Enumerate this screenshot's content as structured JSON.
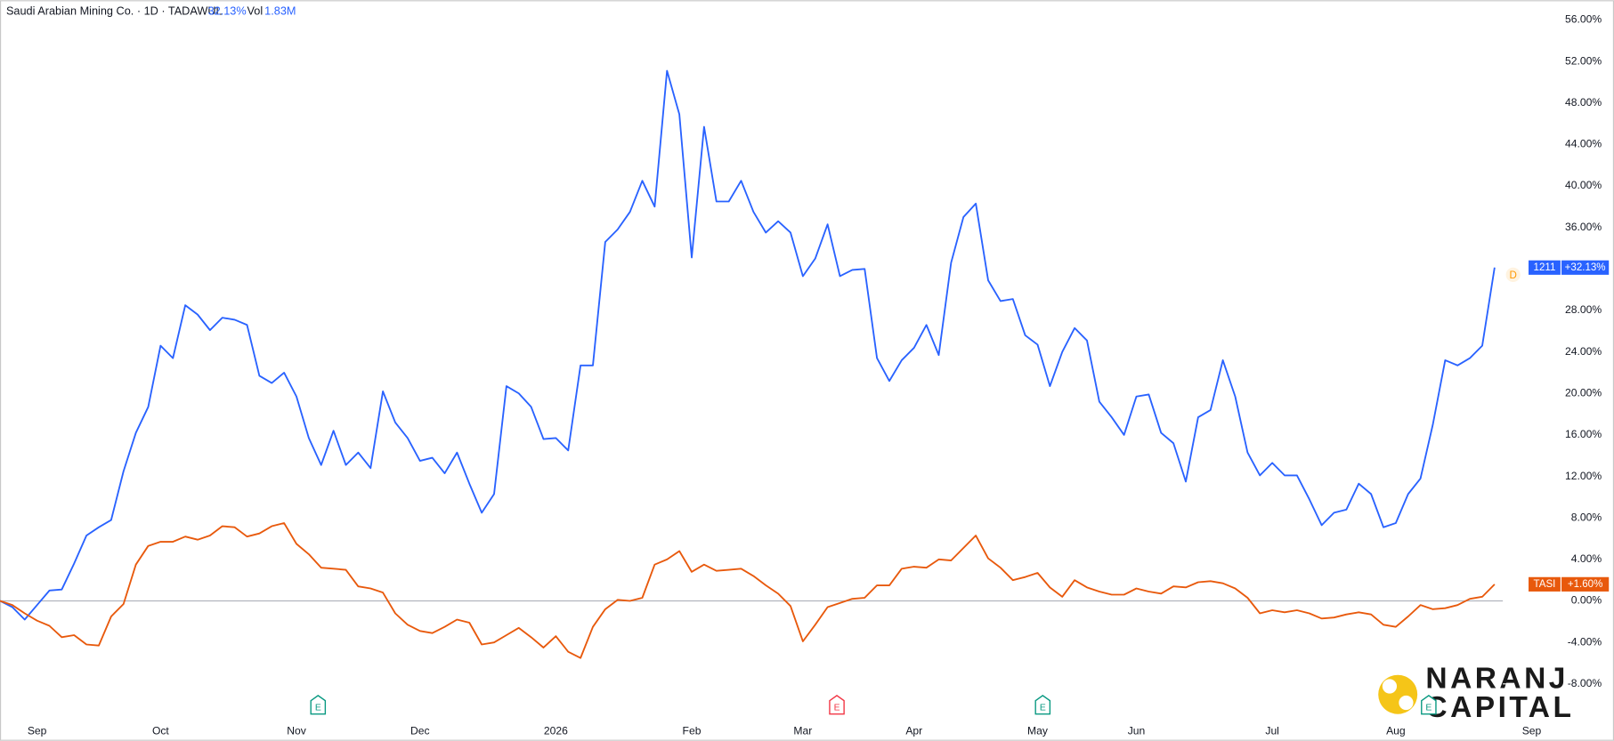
{
  "chart_data": {
    "type": "line",
    "header": {
      "title": "Saudi Arabian Mining Co. · 1D · TADAWUL",
      "change": "32.13%",
      "volume_label": "Vol",
      "volume": "1.83M"
    },
    "categories": [
      null,
      null,
      null,
      "Sep",
      null,
      null,
      null,
      null,
      null,
      null,
      null,
      null,
      null,
      "Oct",
      null,
      null,
      null,
      null,
      null,
      null,
      null,
      null,
      null,
      null,
      "Nov",
      null,
      null,
      null,
      null,
      null,
      null,
      null,
      null,
      null,
      "Dec",
      null,
      null,
      null,
      null,
      null,
      null,
      null,
      null,
      null,
      null,
      "2026",
      null,
      null,
      null,
      null,
      null,
      null,
      null,
      null,
      null,
      null,
      "Feb",
      null,
      null,
      null,
      null,
      null,
      null,
      null,
      null,
      "Mar",
      null,
      null,
      null,
      null,
      null,
      null,
      null,
      null,
      "Apr",
      null,
      null,
      null,
      null,
      null,
      null,
      null,
      null,
      null,
      "May",
      null,
      null,
      null,
      null,
      null,
      null,
      null,
      "Jun",
      null,
      null,
      null,
      null,
      null,
      null,
      null,
      null,
      null,
      null,
      "Jul",
      null,
      null,
      null,
      null,
      null,
      null,
      null,
      null,
      null,
      "Aug",
      null,
      null,
      null,
      null,
      null,
      null,
      null,
      null,
      null,
      null,
      "Sep"
    ],
    "series": [
      {
        "name": "1211",
        "color": "#2962ff",
        "last_value_label": "+32.13%",
        "values": [
          0,
          -0.6,
          -1.8,
          -0.4,
          1,
          1.1,
          3.6,
          6.3,
          7.1,
          7.8,
          12.5,
          16.2,
          18.7,
          24.6,
          23.4,
          28.5,
          27.6,
          26.1,
          27.3,
          27.1,
          26.6,
          21.7,
          21,
          22,
          19.7,
          15.7,
          13.1,
          16.4,
          13.1,
          14.3,
          12.8,
          20.2,
          17.2,
          15.7,
          13.5,
          13.8,
          12.3,
          14.3,
          11.3,
          8.5,
          10.3,
          20.7,
          20,
          18.7,
          15.6,
          15.7,
          14.5,
          22.7,
          22.7,
          34.6,
          35.8,
          37.5,
          40.5,
          38,
          51.1,
          46.9,
          33.1,
          45.7,
          38.5,
          38.5,
          40.5,
          37.5,
          35.5,
          36.6,
          35.5,
          31.3,
          33,
          36.3,
          31.3,
          31.9,
          32,
          23.4,
          21.2,
          23.2,
          24.4,
          26.6,
          23.7,
          32.6,
          37,
          38.3,
          30.9,
          28.9,
          29.1,
          25.6,
          24.7,
          20.7,
          24,
          26.3,
          25.1,
          19.2,
          17.7,
          16,
          19.7,
          19.9,
          16.2,
          15.2,
          11.5,
          17.7,
          18.4,
          23.2,
          19.7,
          14.3,
          12.1,
          13.3,
          12.1,
          12.1,
          9.8,
          7.3,
          8.5,
          8.8,
          11.3,
          10.3,
          7.1,
          7.5,
          10.3,
          11.8,
          17,
          23.2,
          22.7,
          23.4,
          24.6,
          32.13,
          null,
          null,
          null
        ]
      },
      {
        "name": "TASI",
        "color": "#e8590c",
        "last_value_label": "+1.60%",
        "values": [
          0,
          -0.4,
          -1.2,
          -1.9,
          -2.4,
          -3.5,
          -3.3,
          -4.2,
          -4.3,
          -1.5,
          -0.3,
          3.5,
          5.3,
          5.7,
          5.7,
          6.2,
          5.9,
          6.3,
          7.2,
          7.1,
          6.2,
          6.5,
          7.2,
          7.5,
          5.5,
          4.5,
          3.2,
          3.1,
          3,
          1.4,
          1.2,
          0.8,
          -1.2,
          -2.3,
          -2.9,
          -3.1,
          -2.5,
          -1.8,
          -2.1,
          -4.2,
          -4,
          -3.3,
          -2.6,
          -3.5,
          -4.5,
          -3.4,
          -4.9,
          -5.5,
          -2.5,
          -0.8,
          0.1,
          0,
          0.3,
          3.5,
          4,
          4.8,
          2.8,
          3.5,
          2.9,
          3,
          3.1,
          2.4,
          1.5,
          0.7,
          -0.5,
          -3.9,
          -2.3,
          -0.6,
          -0.2,
          0.2,
          0.3,
          1.5,
          1.5,
          3.1,
          3.3,
          3.2,
          4,
          3.9,
          5.1,
          6.3,
          4.1,
          3.2,
          2,
          2.3,
          2.7,
          1.3,
          0.4,
          2,
          1.3,
          0.9,
          0.6,
          0.6,
          1.2,
          0.9,
          0.7,
          1.4,
          1.3,
          1.8,
          1.9,
          1.7,
          1.2,
          0.3,
          -1.2,
          -0.9,
          -1.1,
          -0.9,
          -1.2,
          -1.7,
          -1.6,
          -1.3,
          -1.1,
          -1.3,
          -2.3,
          -2.5,
          -1.5,
          -0.4,
          -0.8,
          -0.7,
          -0.4,
          0.2,
          0.4,
          1.6,
          null,
          null,
          null
        ]
      }
    ],
    "ylim": [
      -11.5,
      57.9
    ],
    "yticks": [
      {
        "value": -8,
        "label": "-8.00%"
      },
      {
        "value": -4,
        "label": "-4.00%"
      },
      {
        "value": 0,
        "label": "0.00%"
      },
      {
        "value": 4,
        "label": "4.00%"
      },
      {
        "value": 8,
        "label": "8.00%"
      },
      {
        "value": 12,
        "label": "12.00%"
      },
      {
        "value": 16,
        "label": "16.00%"
      },
      {
        "value": 20,
        "label": "20.00%"
      },
      {
        "value": 24,
        "label": "24.00%"
      },
      {
        "value": 28,
        "label": "28.00%"
      },
      {
        "value": 32,
        "label": "32.00%"
      },
      {
        "value": 36,
        "label": "36.00%"
      },
      {
        "value": 40,
        "label": "40.00%"
      },
      {
        "value": 44,
        "label": "44.00%"
      },
      {
        "value": 48,
        "label": "48.00%"
      },
      {
        "value": 52,
        "label": "52.00%"
      },
      {
        "value": 56,
        "label": "56.00%"
      }
    ],
    "baseline": 0,
    "dividend_marker": "D",
    "event_markers": [
      "E",
      "E",
      "E",
      "E"
    ],
    "event_colors": [
      "#089981",
      "#f23645",
      "#089981",
      "#089981"
    ],
    "logo": {
      "line1": "NARANJ",
      "line2": "CAPITAL"
    }
  }
}
